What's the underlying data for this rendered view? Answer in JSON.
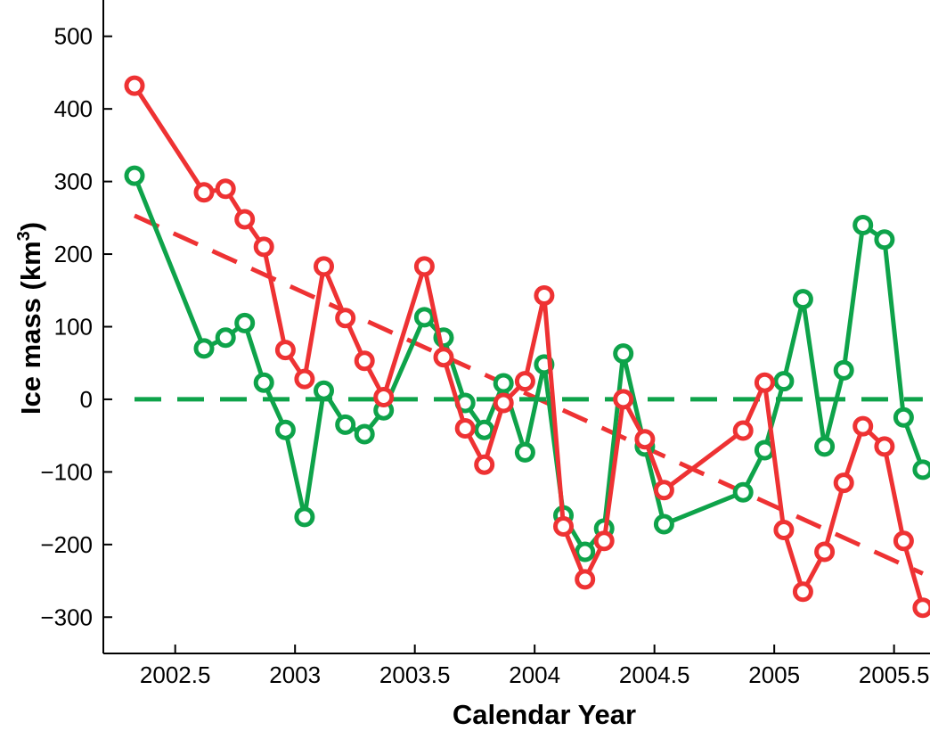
{
  "chart_data": {
    "type": "line",
    "xlabel": "Calendar Year",
    "ylabel_main": "Ice mass (km",
    "ylabel_sup": "3",
    "ylabel_close": ")",
    "xlim": [
      2002.2,
      2005.65
    ],
    "ylim": [
      -350,
      550
    ],
    "xticks": [
      2002.5,
      2003,
      2003.5,
      2004,
      2004.5,
      2005,
      2005.5
    ],
    "xtick_labels": [
      "2002.5",
      "2003",
      "2003.5",
      "2004",
      "2004.5",
      "2005",
      "2005.5"
    ],
    "yticks": [
      -300,
      -200,
      -100,
      0,
      100,
      200,
      300,
      400,
      500
    ],
    "ytick_labels": [
      "−300",
      "−200",
      "−100",
      "0",
      "100",
      "200",
      "300",
      "400",
      "500"
    ],
    "grid": false,
    "legend": "none",
    "series": [
      {
        "color": "#0ea34a",
        "style": "solid-markers",
        "x": [
          2002.33,
          2002.62,
          2002.71,
          2002.79,
          2002.87,
          2002.96,
          2003.04,
          2003.12,
          2003.21,
          2003.29,
          2003.37,
          2003.54,
          2003.62,
          2003.71,
          2003.79,
          2003.87,
          2003.96,
          2004.04,
          2004.12,
          2004.21,
          2004.29,
          2004.37,
          2004.46,
          2004.54,
          2004.87,
          2004.96,
          2005.04,
          2005.12,
          2005.21,
          2005.29,
          2005.37,
          2005.46,
          2005.54,
          2005.62
        ],
        "y": [
          308,
          70,
          85,
          105,
          23,
          -42,
          -162,
          12,
          -35,
          -48,
          -15,
          113,
          85,
          -5,
          -42,
          22,
          -73,
          48,
          -160,
          -210,
          -178,
          63,
          -65,
          -172,
          -128,
          -70,
          25,
          138,
          -65,
          40,
          240,
          220,
          -25,
          -97
        ]
      },
      {
        "color": "#ee3233",
        "style": "solid-markers",
        "x": [
          2002.33,
          2002.62,
          2002.71,
          2002.79,
          2002.87,
          2002.96,
          2003.04,
          2003.12,
          2003.21,
          2003.29,
          2003.37,
          2003.54,
          2003.62,
          2003.71,
          2003.79,
          2003.87,
          2003.96,
          2004.04,
          2004.12,
          2004.21,
          2004.29,
          2004.37,
          2004.46,
          2004.54,
          2004.87,
          2004.96,
          2005.04,
          2005.12,
          2005.21,
          2005.29,
          2005.37,
          2005.46,
          2005.54,
          2005.62
        ],
        "y": [
          432,
          285,
          290,
          248,
          210,
          68,
          28,
          183,
          112,
          53,
          3,
          183,
          58,
          -40,
          -90,
          -5,
          25,
          143,
          -175,
          -248,
          -195,
          0,
          -55,
          -125,
          -43,
          23,
          -180,
          -265,
          -210,
          -115,
          -37,
          -65,
          -195,
          -287
        ]
      },
      {
        "color": "#ee3233",
        "style": "dashed",
        "x": [
          2002.33,
          2005.62
        ],
        "y": [
          253,
          -240
        ]
      },
      {
        "color": "#0ea34a",
        "style": "dashed",
        "x": [
          2002.33,
          2005.62
        ],
        "y": [
          0,
          0
        ]
      }
    ]
  }
}
